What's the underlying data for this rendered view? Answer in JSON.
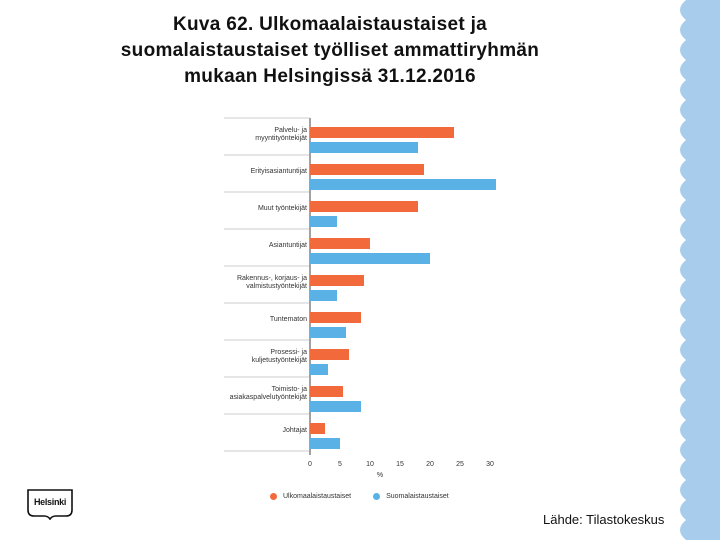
{
  "title_lines": [
    "Kuva 62. Ulkomaalaistaustaiset ja",
    "suomalaistaustaiset työlliset ammattiryhmän",
    "mukaan Helsingissä 31.12.2016"
  ],
  "source": "Lähde: Tilastokeskus",
  "logo_text": "Helsinki",
  "colors": {
    "foreign": "#f26a3c",
    "finnish": "#5ab1e6",
    "stripe": "#a8cceb"
  },
  "chart_data": {
    "type": "bar",
    "orientation": "horizontal",
    "categories": [
      [
        "Palvelu- ja",
        "myyntityöntekijät"
      ],
      [
        "Erityisasiantuntijat"
      ],
      [
        "Muut työntekijät"
      ],
      [
        "Asiantuntijat"
      ],
      [
        "Rakennus-, korjaus- ja",
        "valmistustyöntekijät"
      ],
      [
        "Tuntematon"
      ],
      [
        "Prosessi- ja",
        "kuljetustyöntekijät"
      ],
      [
        "Toimisto- ja",
        "asiakaspalvelutyöntekijät"
      ],
      [
        "Johtajat"
      ]
    ],
    "series": [
      {
        "name": "Ulkomaalaistaustaiset",
        "values": [
          24,
          19,
          18,
          10,
          9,
          8.5,
          6.5,
          5.5,
          2.5
        ]
      },
      {
        "name": "Suomalaistaustaiset",
        "values": [
          18,
          31,
          4.5,
          20,
          4.5,
          6,
          3,
          8.5,
          5
        ]
      }
    ],
    "xticks": [
      0,
      5,
      10,
      15,
      20,
      25,
      30
    ],
    "xlabel": "%",
    "xlim": [
      0,
      32
    ],
    "legend_position": "bottom",
    "grid": false
  }
}
